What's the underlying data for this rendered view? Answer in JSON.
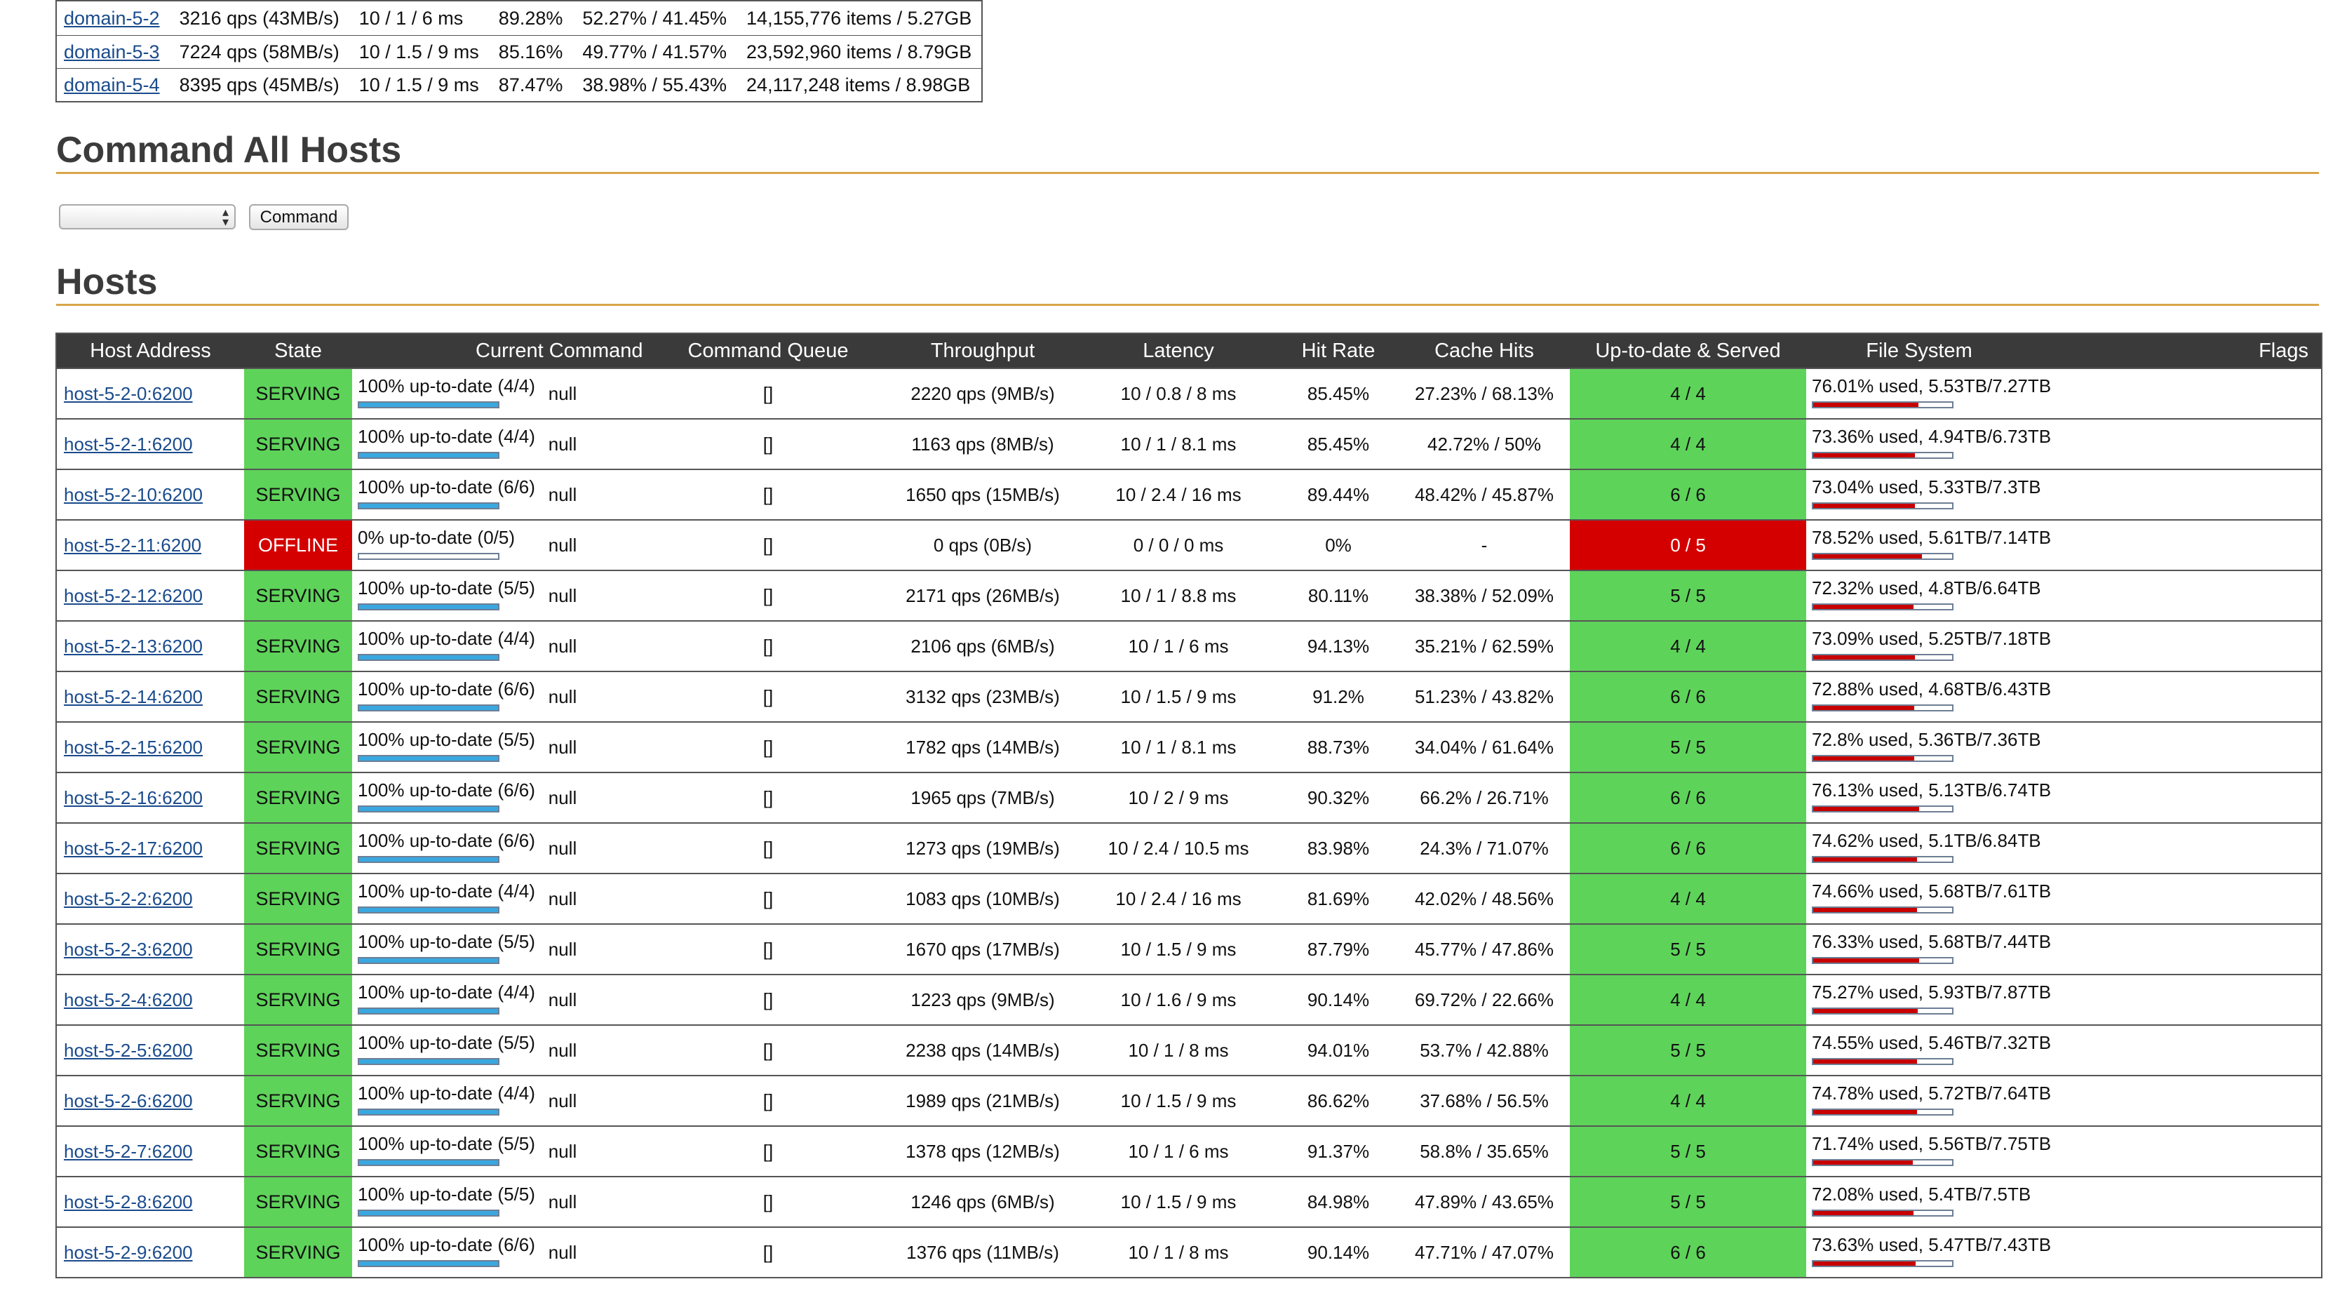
{
  "domains": [
    {
      "name": "domain-5-2",
      "throughput": "3216 qps (43MB/s)",
      "latency": "10 / 1 / 6 ms",
      "hit_rate": "89.28%",
      "cache_hits": "52.27% / 41.45%",
      "size": "14,155,776 items / 5.27GB"
    },
    {
      "name": "domain-5-3",
      "throughput": "7224 qps (58MB/s)",
      "latency": "10 / 1.5 / 9 ms",
      "hit_rate": "85.16%",
      "cache_hits": "49.77% / 41.57%",
      "size": "23,592,960 items / 8.79GB"
    },
    {
      "name": "domain-5-4",
      "throughput": "8395 qps (45MB/s)",
      "latency": "10 / 1.5 / 9 ms",
      "hit_rate": "87.47%",
      "cache_hits": "38.98% / 55.43%",
      "size": "24,117,248 items / 8.98GB"
    }
  ],
  "command_section": {
    "title": "Command All Hosts",
    "select_value": "",
    "button_label": "Command"
  },
  "hosts_section": {
    "title": "Hosts",
    "columns": {
      "host_address": "Host Address",
      "state": "State",
      "current_command": "Current Command",
      "command_queue": "Command Queue",
      "throughput": "Throughput",
      "latency": "Latency",
      "hit_rate": "Hit Rate",
      "cache_hits": "Cache Hits",
      "up_to_date_served": "Up-to-date & Served",
      "file_system": "File System",
      "flags": "Flags"
    },
    "rows": [
      {
        "host": "host-5-2-0:6200",
        "state": "SERVING",
        "up_to_date": "100% up-to-date (4/4)",
        "up_to_date_fraction": 1.0,
        "current_command": "null",
        "command_queue": "[]",
        "throughput": "2220 qps (9MB/s)",
        "latency": "10 / 0.8 / 8 ms",
        "hit_rate": "85.45%",
        "cache_hits": "27.23% / 68.13%",
        "served": "4 / 4",
        "file_system": "76.01% used, 5.53TB/7.27TB",
        "fs_used_fraction": 0.7601,
        "flags": ""
      },
      {
        "host": "host-5-2-1:6200",
        "state": "SERVING",
        "up_to_date": "100% up-to-date (4/4)",
        "up_to_date_fraction": 1.0,
        "current_command": "null",
        "command_queue": "[]",
        "throughput": "1163 qps (8MB/s)",
        "latency": "10 / 1 / 8.1 ms",
        "hit_rate": "85.45%",
        "cache_hits": "42.72% / 50%",
        "served": "4 / 4",
        "file_system": "73.36% used, 4.94TB/6.73TB",
        "fs_used_fraction": 0.7336,
        "flags": ""
      },
      {
        "host": "host-5-2-10:6200",
        "state": "SERVING",
        "up_to_date": "100% up-to-date (6/6)",
        "up_to_date_fraction": 1.0,
        "current_command": "null",
        "command_queue": "[]",
        "throughput": "1650 qps (15MB/s)",
        "latency": "10 / 2.4 / 16 ms",
        "hit_rate": "89.44%",
        "cache_hits": "48.42% / 45.87%",
        "served": "6 / 6",
        "file_system": "73.04% used, 5.33TB/7.3TB",
        "fs_used_fraction": 0.7304,
        "flags": ""
      },
      {
        "host": "host-5-2-11:6200",
        "state": "OFFLINE",
        "up_to_date": "0% up-to-date (0/5)",
        "up_to_date_fraction": 0.0,
        "current_command": "null",
        "command_queue": "[]",
        "throughput": "0 qps (0B/s)",
        "latency": "0 / 0 / 0 ms",
        "hit_rate": "0%",
        "cache_hits": "-",
        "served": "0 / 5",
        "file_system": "78.52% used, 5.61TB/7.14TB",
        "fs_used_fraction": 0.7852,
        "flags": ""
      },
      {
        "host": "host-5-2-12:6200",
        "state": "SERVING",
        "up_to_date": "100% up-to-date (5/5)",
        "up_to_date_fraction": 1.0,
        "current_command": "null",
        "command_queue": "[]",
        "throughput": "2171 qps (26MB/s)",
        "latency": "10 / 1 / 8.8 ms",
        "hit_rate": "80.11%",
        "cache_hits": "38.38% / 52.09%",
        "served": "5 / 5",
        "file_system": "72.32% used, 4.8TB/6.64TB",
        "fs_used_fraction": 0.7232,
        "flags": ""
      },
      {
        "host": "host-5-2-13:6200",
        "state": "SERVING",
        "up_to_date": "100% up-to-date (4/4)",
        "up_to_date_fraction": 1.0,
        "current_command": "null",
        "command_queue": "[]",
        "throughput": "2106 qps (6MB/s)",
        "latency": "10 / 1 / 6 ms",
        "hit_rate": "94.13%",
        "cache_hits": "35.21% / 62.59%",
        "served": "4 / 4",
        "file_system": "73.09% used, 5.25TB/7.18TB",
        "fs_used_fraction": 0.7309,
        "flags": ""
      },
      {
        "host": "host-5-2-14:6200",
        "state": "SERVING",
        "up_to_date": "100% up-to-date (6/6)",
        "up_to_date_fraction": 1.0,
        "current_command": "null",
        "command_queue": "[]",
        "throughput": "3132 qps (23MB/s)",
        "latency": "10 / 1.5 / 9 ms",
        "hit_rate": "91.2%",
        "cache_hits": "51.23% / 43.82%",
        "served": "6 / 6",
        "file_system": "72.88% used, 4.68TB/6.43TB",
        "fs_used_fraction": 0.7288,
        "flags": ""
      },
      {
        "host": "host-5-2-15:6200",
        "state": "SERVING",
        "up_to_date": "100% up-to-date (5/5)",
        "up_to_date_fraction": 1.0,
        "current_command": "null",
        "command_queue": "[]",
        "throughput": "1782 qps (14MB/s)",
        "latency": "10 / 1 / 8.1 ms",
        "hit_rate": "88.73%",
        "cache_hits": "34.04% / 61.64%",
        "served": "5 / 5",
        "file_system": "72.8% used, 5.36TB/7.36TB",
        "fs_used_fraction": 0.728,
        "flags": ""
      },
      {
        "host": "host-5-2-16:6200",
        "state": "SERVING",
        "up_to_date": "100% up-to-date (6/6)",
        "up_to_date_fraction": 1.0,
        "current_command": "null",
        "command_queue": "[]",
        "throughput": "1965 qps (7MB/s)",
        "latency": "10 / 2 / 9 ms",
        "hit_rate": "90.32%",
        "cache_hits": "66.2% / 26.71%",
        "served": "6 / 6",
        "file_system": "76.13% used, 5.13TB/6.74TB",
        "fs_used_fraction": 0.7613,
        "flags": ""
      },
      {
        "host": "host-5-2-17:6200",
        "state": "SERVING",
        "up_to_date": "100% up-to-date (6/6)",
        "up_to_date_fraction": 1.0,
        "current_command": "null",
        "command_queue": "[]",
        "throughput": "1273 qps (19MB/s)",
        "latency": "10 / 2.4 / 10.5 ms",
        "hit_rate": "83.98%",
        "cache_hits": "24.3% / 71.07%",
        "served": "6 / 6",
        "file_system": "74.62% used, 5.1TB/6.84TB",
        "fs_used_fraction": 0.7462,
        "flags": ""
      },
      {
        "host": "host-5-2-2:6200",
        "state": "SERVING",
        "up_to_date": "100% up-to-date (4/4)",
        "up_to_date_fraction": 1.0,
        "current_command": "null",
        "command_queue": "[]",
        "throughput": "1083 qps (10MB/s)",
        "latency": "10 / 2.4 / 16 ms",
        "hit_rate": "81.69%",
        "cache_hits": "42.02% / 48.56%",
        "served": "4 / 4",
        "file_system": "74.66% used, 5.68TB/7.61TB",
        "fs_used_fraction": 0.7466,
        "flags": ""
      },
      {
        "host": "host-5-2-3:6200",
        "state": "SERVING",
        "up_to_date": "100% up-to-date (5/5)",
        "up_to_date_fraction": 1.0,
        "current_command": "null",
        "command_queue": "[]",
        "throughput": "1670 qps (17MB/s)",
        "latency": "10 / 1.5 / 9 ms",
        "hit_rate": "87.79%",
        "cache_hits": "45.77% / 47.86%",
        "served": "5 / 5",
        "file_system": "76.33% used, 5.68TB/7.44TB",
        "fs_used_fraction": 0.7633,
        "flags": ""
      },
      {
        "host": "host-5-2-4:6200",
        "state": "SERVING",
        "up_to_date": "100% up-to-date (4/4)",
        "up_to_date_fraction": 1.0,
        "current_command": "null",
        "command_queue": "[]",
        "throughput": "1223 qps (9MB/s)",
        "latency": "10 / 1.6 / 9 ms",
        "hit_rate": "90.14%",
        "cache_hits": "69.72% / 22.66%",
        "served": "4 / 4",
        "file_system": "75.27% used, 5.93TB/7.87TB",
        "fs_used_fraction": 0.7527,
        "flags": ""
      },
      {
        "host": "host-5-2-5:6200",
        "state": "SERVING",
        "up_to_date": "100% up-to-date (5/5)",
        "up_to_date_fraction": 1.0,
        "current_command": "null",
        "command_queue": "[]",
        "throughput": "2238 qps (14MB/s)",
        "latency": "10 / 1 / 8 ms",
        "hit_rate": "94.01%",
        "cache_hits": "53.7% / 42.88%",
        "served": "5 / 5",
        "file_system": "74.55% used, 5.46TB/7.32TB",
        "fs_used_fraction": 0.7455,
        "flags": ""
      },
      {
        "host": "host-5-2-6:6200",
        "state": "SERVING",
        "up_to_date": "100% up-to-date (4/4)",
        "up_to_date_fraction": 1.0,
        "current_command": "null",
        "command_queue": "[]",
        "throughput": "1989 qps (21MB/s)",
        "latency": "10 / 1.5 / 9 ms",
        "hit_rate": "86.62%",
        "cache_hits": "37.68% / 56.5%",
        "served": "4 / 4",
        "file_system": "74.78% used, 5.72TB/7.64TB",
        "fs_used_fraction": 0.7478,
        "flags": ""
      },
      {
        "host": "host-5-2-7:6200",
        "state": "SERVING",
        "up_to_date": "100% up-to-date (5/5)",
        "up_to_date_fraction": 1.0,
        "current_command": "null",
        "command_queue": "[]",
        "throughput": "1378 qps (12MB/s)",
        "latency": "10 / 1 / 6 ms",
        "hit_rate": "91.37%",
        "cache_hits": "58.8% / 35.65%",
        "served": "5 / 5",
        "file_system": "71.74% used, 5.56TB/7.75TB",
        "fs_used_fraction": 0.7174,
        "flags": ""
      },
      {
        "host": "host-5-2-8:6200",
        "state": "SERVING",
        "up_to_date": "100% up-to-date (5/5)",
        "up_to_date_fraction": 1.0,
        "current_command": "null",
        "command_queue": "[]",
        "throughput": "1246 qps (6MB/s)",
        "latency": "10 / 1.5 / 9 ms",
        "hit_rate": "84.98%",
        "cache_hits": "47.89% / 43.65%",
        "served": "5 / 5",
        "file_system": "72.08% used, 5.4TB/7.5TB",
        "fs_used_fraction": 0.7208,
        "flags": ""
      },
      {
        "host": "host-5-2-9:6200",
        "state": "SERVING",
        "up_to_date": "100% up-to-date (6/6)",
        "up_to_date_fraction": 1.0,
        "current_command": "null",
        "command_queue": "[]",
        "throughput": "1376 qps (11MB/s)",
        "latency": "10 / 1 / 8 ms",
        "hit_rate": "90.14%",
        "cache_hits": "47.71% / 47.07%",
        "served": "6 / 6",
        "file_system": "73.63% used, 5.47TB/7.43TB",
        "fs_used_fraction": 0.7363,
        "flags": ""
      }
    ]
  },
  "colors": {
    "serving": "#5ed35a",
    "offline": "#d40000",
    "up_to_date_bar": "#39a8e0",
    "file_system_bar": "#c80000",
    "header_bg": "#3a3a3a",
    "section_rule": "#d9a54a",
    "link": "#1a4b8c"
  },
  "icons": {
    "select_arrows": "up-down-chevron-icon"
  }
}
